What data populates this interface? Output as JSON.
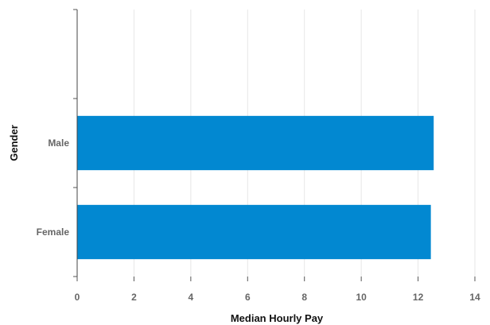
{
  "chart_data": {
    "type": "bar",
    "orientation": "horizontal",
    "categories": [
      "",
      "Male",
      "Female"
    ],
    "values": [
      null,
      12.55,
      12.45
    ],
    "xlabel": "Median Hourly Pay",
    "ylabel": "Gender",
    "xlim": [
      0,
      14
    ],
    "xticks": [
      "0",
      "2",
      "4",
      "6",
      "8",
      "10",
      "12",
      "14"
    ],
    "grid": true,
    "legend": "none",
    "bar_color": "#0288d1"
  }
}
